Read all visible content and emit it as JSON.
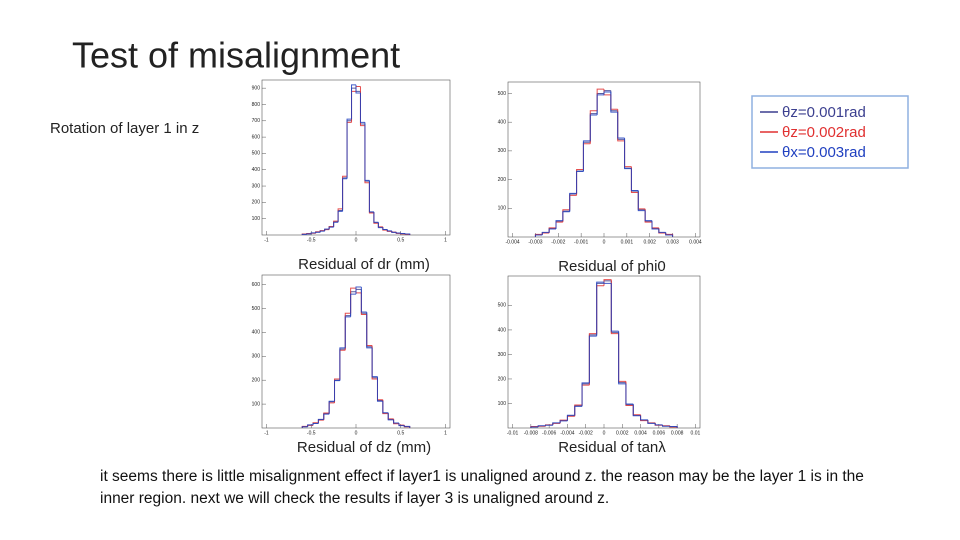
{
  "title": "Test of misalignment",
  "subtitle": "Rotation of layer 1 in z",
  "body": "it seems there is little misalignment effect if layer1 is unaligned around z. the reason may be the layer 1 is in the inner region. next we will check the results if layer 3 is unaligned around z.",
  "chart_data": [
    {
      "type": "histogram",
      "title": "Residual of dr (mm)",
      "bins": [
        -0.6,
        -0.55,
        -0.5,
        -0.45,
        -0.4,
        -0.35,
        -0.3,
        -0.25,
        -0.2,
        -0.15,
        -0.1,
        -0.05,
        0,
        0.05,
        0.1,
        0.15,
        0.2,
        0.25,
        0.3,
        0.35,
        0.4,
        0.45,
        0.5,
        0.55,
        0.6
      ],
      "series": [
        {
          "name": "θz=0.001rad",
          "color": "#3b3f8f",
          "values": [
            5,
            8,
            12,
            18,
            25,
            35,
            50,
            80,
            150,
            350,
            700,
            900,
            880,
            680,
            330,
            140,
            75,
            48,
            33,
            24,
            17,
            11,
            8,
            5
          ]
        },
        {
          "name": "θz=0.002rad",
          "color": "#e03030",
          "values": [
            6,
            9,
            11,
            20,
            27,
            33,
            52,
            85,
            160,
            360,
            690,
            880,
            910,
            670,
            320,
            135,
            72,
            50,
            30,
            22,
            18,
            10,
            7,
            4
          ]
        },
        {
          "name": "θx=0.003rad",
          "color": "#2040c0",
          "values": [
            4,
            7,
            13,
            17,
            24,
            36,
            48,
            78,
            145,
            345,
            710,
            920,
            870,
            690,
            335,
            142,
            78,
            45,
            34,
            25,
            16,
            12,
            9,
            6
          ]
        }
      ],
      "xlim": [
        -1.05,
        1.05
      ],
      "xticks": [
        -1,
        -0.5,
        0,
        0.5,
        1
      ],
      "ylim": [
        0,
        950
      ],
      "yticks": [
        100,
        200,
        300,
        400,
        500,
        600,
        700,
        800,
        900
      ]
    },
    {
      "type": "histogram",
      "title": "Residual of phi0",
      "bins": [
        -0.003,
        -0.0027,
        -0.0024,
        -0.0021,
        -0.0018,
        -0.0015,
        -0.0012,
        -0.0009,
        -0.0006,
        -0.0003,
        0,
        0.0003,
        0.0006,
        0.0009,
        0.0012,
        0.0015,
        0.0018,
        0.0021,
        0.0024,
        0.0027,
        0.003
      ],
      "series": [
        {
          "name": "θz=0.001rad",
          "color": "#3b3f8f",
          "values": [
            8,
            15,
            30,
            55,
            90,
            150,
            230,
            330,
            430,
            500,
            510,
            440,
            340,
            240,
            160,
            95,
            55,
            30,
            15,
            8
          ]
        },
        {
          "name": "θz=0.002rad",
          "color": "#e03030",
          "values": [
            9,
            14,
            32,
            52,
            95,
            145,
            235,
            325,
            440,
            515,
            495,
            445,
            335,
            245,
            155,
            98,
            52,
            32,
            14,
            9
          ]
        },
        {
          "name": "θx=0.003rad",
          "color": "#2040c0",
          "values": [
            7,
            16,
            28,
            57,
            88,
            152,
            228,
            335,
            425,
            495,
            505,
            435,
            345,
            238,
            162,
            92,
            57,
            28,
            16,
            7
          ]
        }
      ],
      "xlim": [
        -0.0042,
        0.0042
      ],
      "xticks": [
        -0.004,
        -0.003,
        -0.002,
        -0.001,
        0,
        0.001,
        0.002,
        0.003,
        0.004
      ],
      "ylim": [
        0,
        540
      ],
      "yticks": [
        100,
        200,
        300,
        400,
        500
      ]
    },
    {
      "type": "histogram",
      "title": "Residual of dz (mm)",
      "bins": [
        -0.6,
        -0.54,
        -0.48,
        -0.42,
        -0.36,
        -0.3,
        -0.24,
        -0.18,
        -0.12,
        -0.06,
        0,
        0.06,
        0.12,
        0.18,
        0.24,
        0.3,
        0.36,
        0.42,
        0.48,
        0.54,
        0.6
      ],
      "series": [
        {
          "name": "θz=0.001rad",
          "color": "#3b3f8f",
          "values": [
            6,
            12,
            20,
            35,
            60,
            110,
            200,
            330,
            470,
            570,
            580,
            480,
            340,
            210,
            115,
            62,
            36,
            20,
            11,
            6
          ]
        },
        {
          "name": "θz=0.002rad",
          "color": "#e03030",
          "values": [
            7,
            11,
            22,
            33,
            63,
            105,
            205,
            325,
            480,
            585,
            565,
            475,
            345,
            205,
            118,
            60,
            38,
            18,
            12,
            5
          ]
        },
        {
          "name": "θx=0.003rad",
          "color": "#2040c0",
          "values": [
            5,
            13,
            19,
            36,
            58,
            112,
            198,
            335,
            465,
            560,
            590,
            485,
            335,
            215,
            112,
            64,
            34,
            21,
            10,
            7
          ]
        }
      ],
      "xlim": [
        -1.05,
        1.05
      ],
      "xticks": [
        -1,
        -0.5,
        0,
        0.5,
        1
      ],
      "ylim": [
        0,
        640
      ],
      "yticks": [
        100,
        200,
        300,
        400,
        500,
        600
      ]
    },
    {
      "type": "histogram",
      "title": "Residual of tanλ",
      "bins": [
        -0.008,
        -0.0072,
        -0.0064,
        -0.0056,
        -0.0048,
        -0.004,
        -0.0032,
        -0.0024,
        -0.0016,
        -0.0008,
        0,
        0.0008,
        0.0016,
        0.0024,
        0.0032,
        0.004,
        0.0048,
        0.0056,
        0.0064,
        0.0072,
        0.008
      ],
      "series": [
        {
          "name": "θz=0.001rad",
          "color": "#3b3f8f",
          "values": [
            5,
            8,
            12,
            20,
            30,
            50,
            90,
            180,
            380,
            590,
            600,
            390,
            185,
            95,
            52,
            32,
            20,
            12,
            8,
            5
          ]
        },
        {
          "name": "θz=0.002rad",
          "color": "#e03030",
          "values": [
            6,
            7,
            13,
            19,
            32,
            48,
            94,
            175,
            385,
            580,
            605,
            385,
            190,
            92,
            54,
            30,
            21,
            11,
            9,
            4
          ]
        },
        {
          "name": "θx=0.003rad",
          "color": "#2040c0",
          "values": [
            4,
            9,
            11,
            21,
            29,
            52,
            88,
            184,
            375,
            595,
            590,
            395,
            180,
            98,
            50,
            33,
            19,
            13,
            7,
            6
          ]
        }
      ],
      "xlim": [
        -0.0105,
        0.0105
      ],
      "xticks": [
        -0.01,
        -0.008,
        -0.006,
        -0.004,
        -0.002,
        0,
        0.002,
        0.004,
        0.006,
        0.008,
        0.01
      ],
      "ylim": [
        0,
        620
      ],
      "yticks": [
        100,
        200,
        300,
        400,
        500
      ]
    }
  ]
}
